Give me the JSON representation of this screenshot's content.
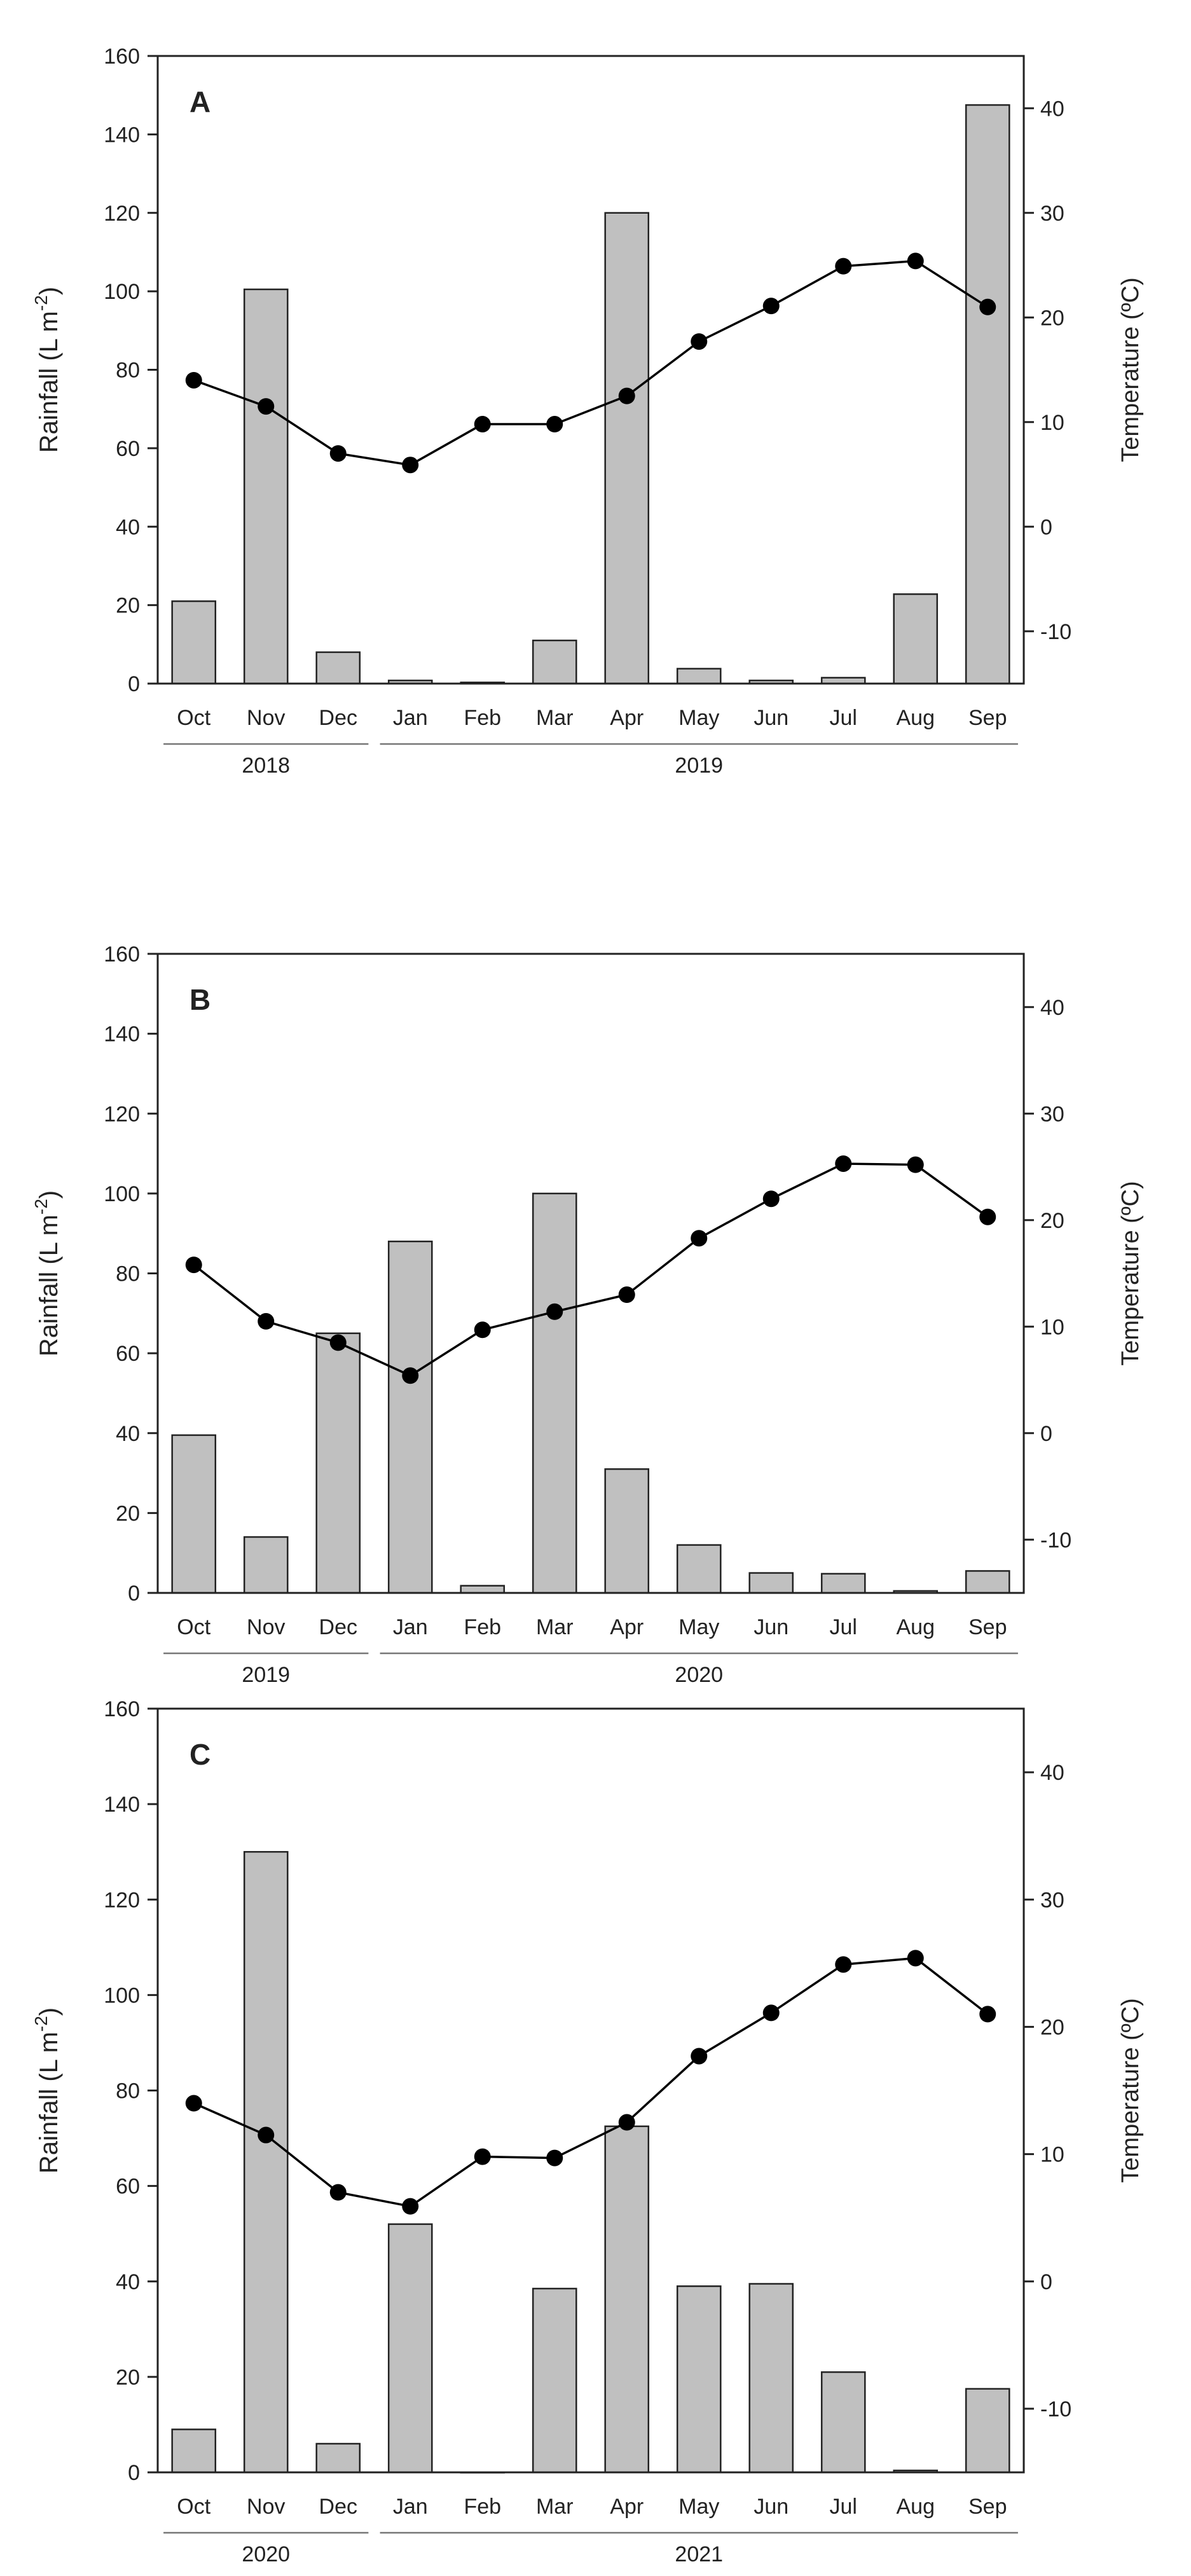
{
  "chart_data": [
    {
      "type": "bar",
      "panel_label": "A",
      "categories": [
        "Oct",
        "Nov",
        "Dec",
        "Jan",
        "Feb",
        "Mar",
        "Apr",
        "May",
        "Jun",
        "Jul",
        "Aug",
        "Sep"
      ],
      "series": [
        {
          "name": "Rainfall",
          "kind": "bar",
          "axis": "left",
          "color": "#c0c0c0",
          "values": [
            21,
            100.5,
            8,
            0.8,
            0.3,
            11,
            120,
            3.8,
            0.8,
            1.5,
            22.8,
            147.5
          ]
        },
        {
          "name": "Temperature",
          "kind": "line",
          "axis": "right",
          "color": "#000000",
          "values": [
            14,
            11.5,
            7,
            5.9,
            9.8,
            9.8,
            12.5,
            17.7,
            21.1,
            24.9,
            25.4,
            21
          ]
        }
      ],
      "ylabel": "Rainfall (L m",
      "ylabel_sup": "-2",
      "ylabel_tail": ")",
      "y2label": "Temperature (ºC)",
      "ylim": [
        0,
        160
      ],
      "y2lim": [
        -15,
        45
      ],
      "yticks": [
        "0",
        "20",
        "40",
        "60",
        "80",
        "100",
        "120",
        "140",
        "160"
      ],
      "y2ticks": [
        "-10",
        "0",
        "10",
        "20",
        "30",
        "40"
      ],
      "year_groups": [
        {
          "label": "2018",
          "from": 0,
          "to": 2
        },
        {
          "label": "2019",
          "from": 3,
          "to": 11
        }
      ]
    },
    {
      "type": "bar",
      "panel_label": "B",
      "categories": [
        "Oct",
        "Nov",
        "Dec",
        "Jan",
        "Feb",
        "Mar",
        "Apr",
        "May",
        "Jun",
        "Jul",
        "Aug",
        "Sep"
      ],
      "series": [
        {
          "name": "Rainfall",
          "kind": "bar",
          "axis": "left",
          "color": "#c0c0c0",
          "values": [
            39.5,
            14,
            65,
            88,
            1.8,
            100,
            31,
            12,
            5,
            4.8,
            0.5,
            5.5
          ]
        },
        {
          "name": "Temperature",
          "kind": "line",
          "axis": "right",
          "color": "#000000",
          "values": [
            15.8,
            10.5,
            8.5,
            5.4,
            9.7,
            11.4,
            13,
            18.3,
            22,
            25.3,
            25.2,
            20.3
          ]
        }
      ],
      "ylabel": "Rainfall (L m",
      "ylabel_sup": "-2",
      "ylabel_tail": ")",
      "y2label": "Temperature (ºC)",
      "ylim": [
        0,
        160
      ],
      "y2lim": [
        -15,
        45
      ],
      "yticks": [
        "0",
        "20",
        "40",
        "60",
        "80",
        "100",
        "120",
        "140",
        "160"
      ],
      "y2ticks": [
        "-10",
        "0",
        "10",
        "20",
        "30",
        "40"
      ],
      "year_groups": [
        {
          "label": "2019",
          "from": 0,
          "to": 2
        },
        {
          "label": "2020",
          "from": 3,
          "to": 11
        }
      ]
    },
    {
      "type": "bar",
      "panel_label": "C",
      "categories": [
        "Oct",
        "Nov",
        "Dec",
        "Jan",
        "Feb",
        "Mar",
        "Apr",
        "May",
        "Jun",
        "Jul",
        "Aug",
        "Sep"
      ],
      "series": [
        {
          "name": "Rainfall",
          "kind": "bar",
          "axis": "left",
          "color": "#c0c0c0",
          "values": [
            9,
            130,
            6,
            52,
            0,
            38.5,
            72.5,
            39,
            39.5,
            21,
            0.4,
            17.5
          ]
        },
        {
          "name": "Temperature",
          "kind": "line",
          "axis": "right",
          "color": "#000000",
          "values": [
            14,
            11.5,
            7,
            5.9,
            9.8,
            9.7,
            12.5,
            17.7,
            21.1,
            24.9,
            25.4,
            21
          ]
        }
      ],
      "ylabel": "Rainfall (L m",
      "ylabel_sup": "-2",
      "ylabel_tail": ")",
      "y2label": "Temperature (ºC)",
      "ylim": [
        0,
        160
      ],
      "y2lim": [
        -15,
        45
      ],
      "yticks": [
        "0",
        "20",
        "40",
        "60",
        "80",
        "100",
        "120",
        "140",
        "160"
      ],
      "y2ticks": [
        "-10",
        "0",
        "10",
        "20",
        "30",
        "40"
      ],
      "year_groups": [
        {
          "label": "2020",
          "from": 0,
          "to": 2
        },
        {
          "label": "2021",
          "from": 3,
          "to": 11
        }
      ]
    }
  ]
}
